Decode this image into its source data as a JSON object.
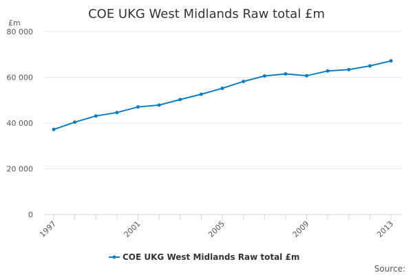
{
  "chart_data": {
    "type": "line",
    "title": "COE UKG West Midlands Raw total £m",
    "ylabel": "£m",
    "xlabel": "",
    "ylim": [
      0,
      80000
    ],
    "yticks": [
      0,
      20000,
      40000,
      60000,
      80000
    ],
    "ytick_labels": [
      "0",
      "20 000",
      "40 000",
      "60 000",
      "80 000"
    ],
    "xtick_labels": [
      "1997",
      "2001",
      "2005",
      "2009",
      "2013"
    ],
    "grid": true,
    "legend_position": "bottom",
    "x": [
      1997,
      1998,
      1999,
      2000,
      2001,
      2002,
      2003,
      2004,
      2005,
      2006,
      2007,
      2008,
      2009,
      2010,
      2011,
      2012,
      2013
    ],
    "series": [
      {
        "name": "COE UKG West Midlands Raw total £m",
        "color": "#0a7dc2",
        "values": [
          37200,
          40400,
          43100,
          44600,
          47050,
          47850,
          50300,
          52600,
          55200,
          58200,
          60600,
          61500,
          60700,
          62800,
          63400,
          65000,
          67200
        ]
      }
    ],
    "source_label": "Source:"
  }
}
